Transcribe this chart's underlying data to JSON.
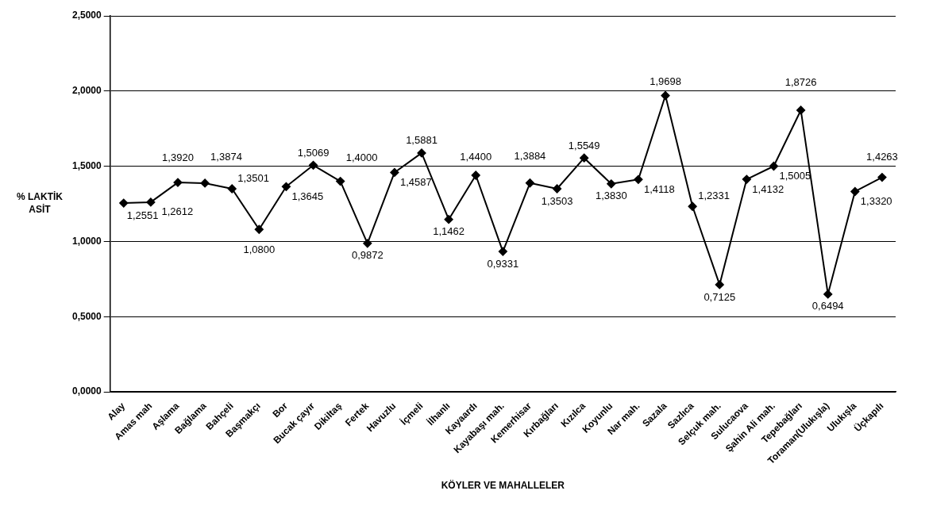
{
  "chart_data": {
    "type": "line",
    "xlabel": "KÖYLER VE MAHALLELER",
    "ylabel": "% LAKTİK ASİT",
    "categories": [
      "Alay",
      "Amas mah",
      "Aşlama",
      "Bağlama",
      "Bahçeli",
      "Başmakçı",
      "Bor",
      "Bucak çayır",
      "Dikiltaş",
      "Fertek",
      "Havuzlu",
      "İçmeli",
      "İlhanlı",
      "Kayaardı",
      "Kayabaşı mah.",
      "Kemerhisar",
      "Kırbağları",
      "Kızılca",
      "Koyunlu",
      "Nar mah.",
      "Sazala",
      "Sazlıca",
      "Selçuk mah.",
      "Sulucaova",
      "Şahin Ali mah.",
      "Tepebağları",
      "Toraman(Ulukışla)",
      "Ulukışla",
      "Üçkapılı"
    ],
    "series": [
      {
        "color": "#000000",
        "values": [
          1.2551,
          1.2612,
          1.392,
          1.3874,
          1.3501,
          1.08,
          1.3645,
          1.5069,
          1.4,
          0.9872,
          1.4587,
          1.5881,
          1.1462,
          1.44,
          0.9331,
          1.3884,
          1.3503,
          1.5549,
          1.383,
          1.4118,
          1.9698,
          1.2331,
          0.7125,
          1.4132,
          1.5005,
          1.8726,
          0.6494,
          1.332,
          1.4263
        ],
        "value_labels": [
          "1,2551",
          "1,2612",
          "1,3920",
          "1,3874",
          "1,3501",
          "1,0800",
          "1,3645",
          "1,5069",
          "1,4000",
          "0,9872",
          "1,4587",
          "1,5881",
          "1,1462",
          "1,4400",
          "0,9331",
          "1,3884",
          "1,3503",
          "1,5549",
          "1,3830",
          "1,4118",
          "1,9698",
          "1,2331",
          "0,7125",
          "1,4132",
          "1,5005",
          "1,8726",
          "0,6494",
          "1,3320",
          "1,4263"
        ]
      }
    ],
    "ylim": [
      0,
      2.5
    ],
    "yticks": [
      {
        "value": 0,
        "label": "0,0000"
      },
      {
        "value": 0.5,
        "label": "0,5000"
      },
      {
        "value": 1,
        "label": "1,0000"
      },
      {
        "value": 1.5,
        "label": "1,5000"
      },
      {
        "value": 2,
        "label": "2,0000"
      },
      {
        "value": 2.5,
        "label": "2,5000"
      }
    ],
    "grid": "y",
    "marker": "diamond",
    "line_style": "solid",
    "legend": false
  }
}
